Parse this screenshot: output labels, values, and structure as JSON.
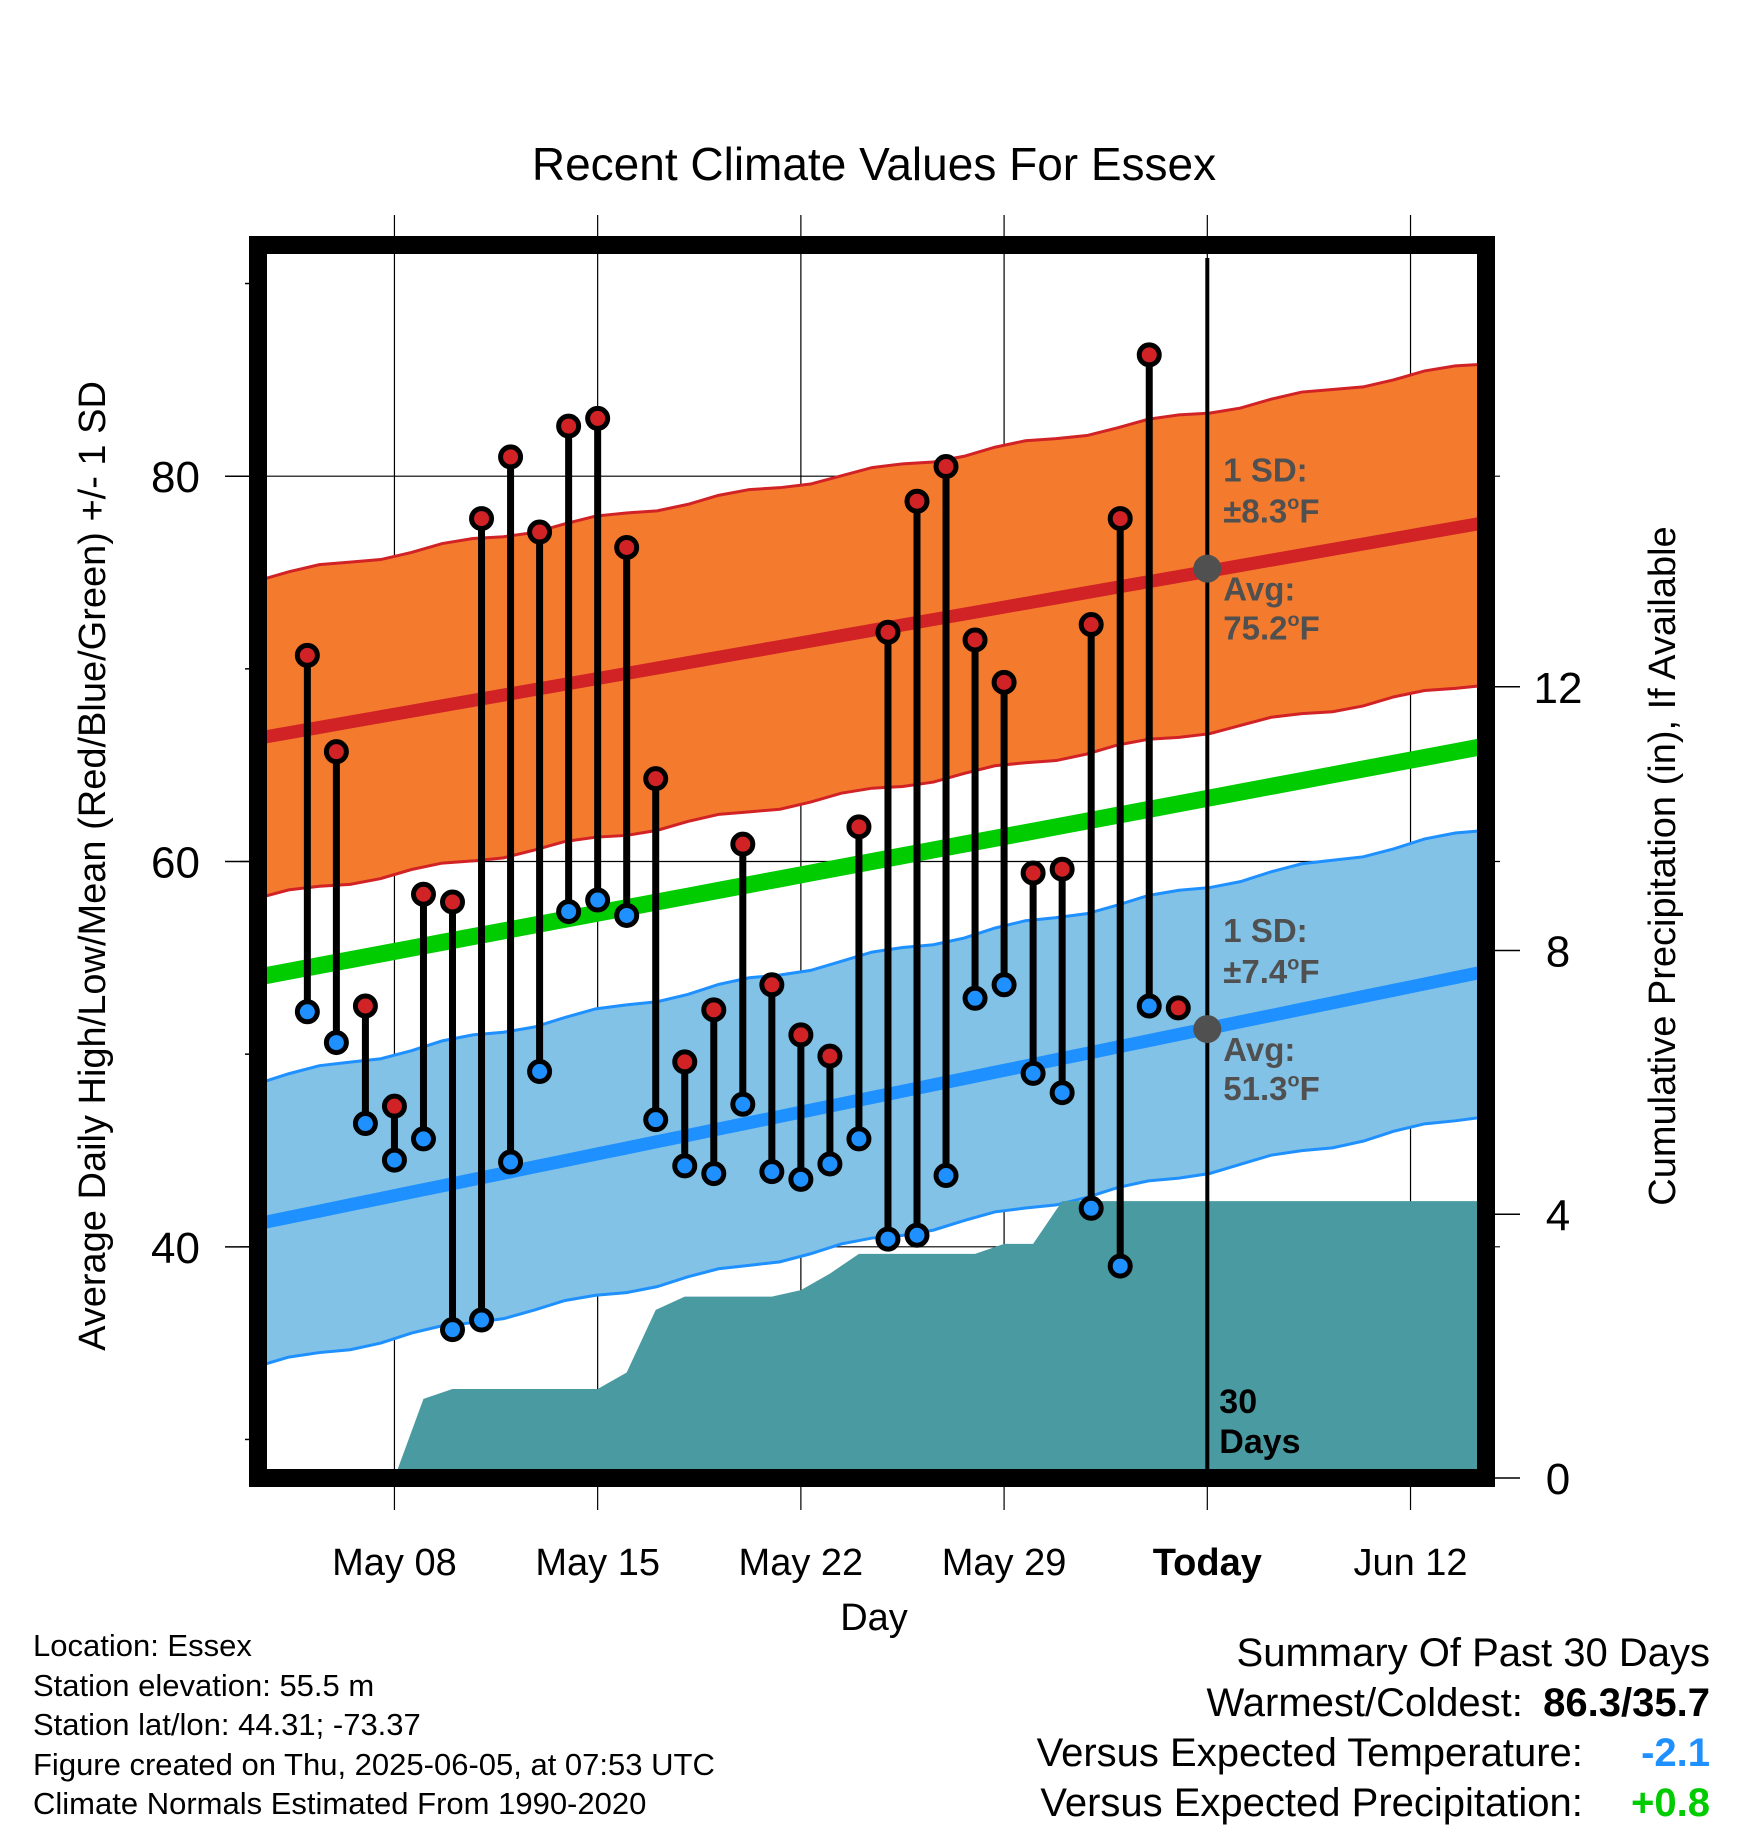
{
  "title": "Recent Climate Values For Essex",
  "xlabel": "Day",
  "ylabel_left": "Average Daily High/Low/Mean (Red/Blue/Green) +/- 1 SD",
  "ylabel_right": "Cumulative Precipitation (in), If Available",
  "x_ticks": [
    {
      "day": 8,
      "label": "May 08"
    },
    {
      "day": 15,
      "label": "May 15"
    },
    {
      "day": 22,
      "label": "May 22"
    },
    {
      "day": 29,
      "label": "May 29"
    },
    {
      "day": 36,
      "label": "Today",
      "bold": true
    },
    {
      "day": 43,
      "label": "Jun 12"
    }
  ],
  "y_ticks_left": [
    40,
    60,
    80
  ],
  "y_ticks_right": [
    0,
    4,
    8,
    12
  ],
  "today_label": {
    "line1": "30",
    "line2": "Days"
  },
  "annotations": {
    "high_sd_label": "1 SD:",
    "high_sd_value": "±8.3",
    "high_avg_label": "Avg:",
    "high_avg_value": "75.2",
    "low_sd_label": "1 SD:",
    "low_sd_value": "±7.4",
    "low_avg_label": "Avg:",
    "low_avg_value": "51.3",
    "degree_unit": "o",
    "unit": "F"
  },
  "colors": {
    "high_band": "#f47b2d",
    "high_line": "#d12226",
    "mean_line": "#00cc00",
    "low_band": "#82c2e6",
    "low_line": "#1e90ff",
    "precip": "#4a9aa2",
    "high_dot": "#d12226",
    "low_dot": "#1e90ff",
    "avg_dot": "#505050",
    "annotation": "#505050",
    "temp_anomaly": "#1e90ff",
    "precip_anomaly": "#00cc00"
  },
  "chart_data": {
    "type": "line",
    "x_range_days": [
      3.3,
      45.6
    ],
    "today_day": 36,
    "ylim_left": [
      28,
      92
    ],
    "ylim_right": [
      0,
      18.7
    ],
    "normals": {
      "days": [
        3.3,
        45.6
      ],
      "avg_high": [
        66.4,
        77.6
      ],
      "high_sd": [
        8.3,
        8.3
      ],
      "avg_mean": [
        54.0,
        66.0
      ],
      "avg_low": [
        41.2,
        54.3
      ],
      "low_sd": [
        7.4,
        7.4
      ]
    },
    "daily": {
      "days": [
        5,
        6,
        7,
        8,
        9,
        10,
        11,
        12,
        13,
        14,
        15,
        16,
        17,
        18,
        19,
        20,
        21,
        22,
        23,
        24,
        25,
        26,
        27,
        28,
        29,
        30,
        31,
        32,
        33,
        34,
        35
      ],
      "high": [
        70.7,
        65.7,
        52.5,
        47.3,
        58.3,
        57.9,
        77.8,
        81.0,
        77.1,
        82.6,
        83.0,
        76.3,
        64.3,
        49.6,
        52.3,
        60.9,
        53.6,
        51.0,
        49.9,
        61.8,
        71.9,
        78.7,
        80.5,
        71.5,
        69.3,
        59.4,
        59.6,
        72.3,
        77.8,
        86.3,
        52.4
      ],
      "low": [
        52.2,
        50.6,
        46.4,
        44.5,
        45.6,
        35.7,
        36.2,
        44.4,
        49.1,
        57.4,
        58.0,
        57.2,
        46.6,
        44.2,
        43.8,
        47.4,
        43.9,
        43.5,
        44.3,
        45.6,
        40.4,
        40.6,
        43.7,
        52.9,
        53.6,
        49.0,
        48.0,
        42.0,
        39.0,
        52.5,
        null
      ]
    },
    "precip": {
      "days": [
        3.3,
        8,
        9,
        10,
        11,
        12,
        13,
        14,
        15,
        16,
        17,
        18,
        19,
        20,
        21,
        22,
        23,
        24,
        25,
        26,
        27,
        28,
        29,
        30,
        31,
        32,
        33,
        34,
        35,
        36,
        45.6
      ],
      "cumulative": [
        0,
        0,
        1.2,
        1.35,
        1.35,
        1.35,
        1.35,
        1.35,
        1.35,
        1.6,
        2.55,
        2.75,
        2.75,
        2.75,
        2.75,
        2.85,
        3.1,
        3.4,
        3.4,
        3.4,
        3.4,
        3.4,
        3.55,
        3.55,
        4.2,
        4.2,
        4.2,
        4.2,
        4.2,
        4.2,
        4.2
      ]
    }
  },
  "info": {
    "location": "Location: Essex",
    "elevation": "Station elevation: 55.5 m",
    "latlon": "Station lat/lon: 44.31; -73.37",
    "created": "Figure created on Thu, 2025-06-05, at 07:53 UTC",
    "normals": "Climate Normals Estimated From 1990-2020"
  },
  "summary": {
    "title": "Summary Of Past 30 Days",
    "warm_cold_label": "Warmest/Coldest:",
    "warm_cold_value": "86.3/35.7",
    "temp_label": "Versus Expected Temperature:",
    "temp_value": "-2.1",
    "precip_label": "Versus Expected Precipitation:",
    "precip_value": "+0.8"
  }
}
